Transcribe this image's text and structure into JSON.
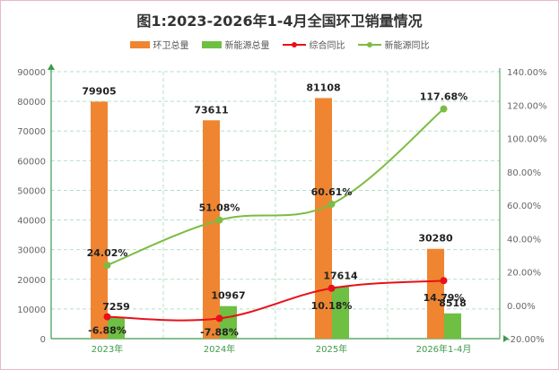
{
  "title": "图1:2023-2026年1-4月全国环卫销量情况",
  "legend": {
    "bar1": "环卫总量",
    "bar2": "新能源总量",
    "line1": "综合同比",
    "line2": "新能源同比"
  },
  "colors": {
    "bar1": "#ef8531",
    "bar2": "#6fbf42",
    "line1": "#e8101a",
    "line2": "#7dbb42",
    "grid": "#b5e0c6",
    "axis": "#3e9a4a"
  },
  "chart_data": {
    "type": "bar",
    "categories": [
      "2023年",
      "2024年",
      "2025年",
      "2026年1-4月"
    ],
    "series": [
      {
        "name": "环卫总量",
        "type": "bar",
        "axis": "left",
        "values": [
          79905,
          73611,
          81108,
          30280
        ]
      },
      {
        "name": "新能源总量",
        "type": "bar",
        "axis": "left",
        "values": [
          7259,
          10967,
          17614,
          8518
        ]
      },
      {
        "name": "综合同比",
        "type": "line",
        "axis": "right",
        "values": [
          -6.88,
          -7.88,
          10.18,
          14.79
        ]
      },
      {
        "name": "新能源同比",
        "type": "line",
        "axis": "right",
        "values": [
          24.02,
          51.08,
          60.61,
          117.68
        ]
      }
    ],
    "bar_labels": [
      [
        "79905",
        "73611",
        "81108",
        "30280"
      ],
      [
        "7259",
        "10967",
        "17614",
        "8518"
      ]
    ],
    "line_labels": [
      [
        "-6.88%",
        "-7.88%",
        "10.18%",
        "14.79%"
      ],
      [
        "24.02%",
        "51.08%",
        "60.61%",
        "117.68%"
      ]
    ],
    "ylim_left": [
      0,
      90000
    ],
    "yticks_left": [
      "0",
      "10000",
      "20000",
      "30000",
      "40000",
      "50000",
      "60000",
      "70000",
      "80000",
      "90000"
    ],
    "ylim_right": [
      -20,
      140
    ],
    "yticks_right": [
      "-20.00%",
      "0.00%",
      "20.00%",
      "40.00%",
      "60.00%",
      "80.00%",
      "100.00%",
      "120.00%",
      "140.00%"
    ],
    "grid": true,
    "legend_position": "top-center"
  }
}
